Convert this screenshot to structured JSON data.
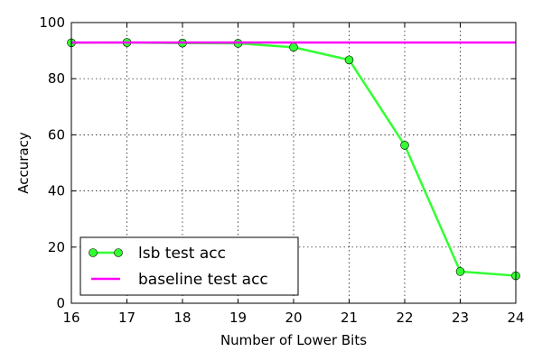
{
  "chart_data": {
    "type": "line",
    "xlabel": "Number of Lower Bits",
    "ylabel": "Accuracy",
    "x": [
      16,
      17,
      18,
      19,
      20,
      21,
      22,
      23,
      24
    ],
    "xlim": [
      16,
      24
    ],
    "ylim": [
      0,
      100
    ],
    "xticks": [
      16,
      17,
      18,
      19,
      20,
      21,
      22,
      23,
      24
    ],
    "yticks": [
      0,
      20,
      40,
      60,
      80,
      100
    ],
    "grid": true,
    "legend_position": "lower-left",
    "series": [
      {
        "name": "lsb test acc",
        "values": [
          92.8,
          92.9,
          92.7,
          92.6,
          91.2,
          86.7,
          56.3,
          11.3,
          9.8
        ],
        "color": "#33ff33",
        "marker": "circle",
        "marker_color": "#33ff33"
      },
      {
        "name": "baseline test acc",
        "values": [
          92.9,
          92.9,
          92.9,
          92.9,
          92.9,
          92.9,
          92.9,
          92.9,
          92.9
        ],
        "color": "#ff00ff",
        "marker": "none"
      }
    ]
  }
}
